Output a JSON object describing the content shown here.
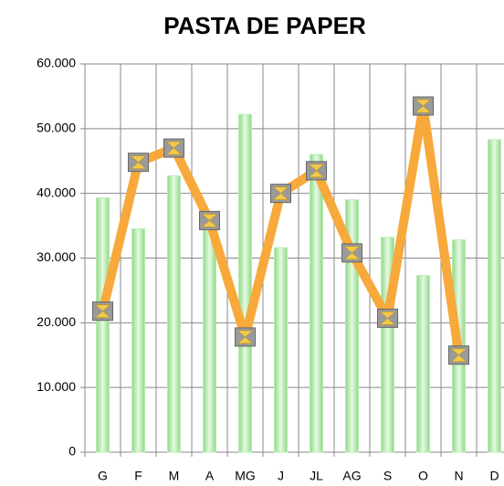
{
  "chart_data": {
    "type": "bar_line",
    "title": "PASTA DE PAPER",
    "categories": [
      "G",
      "F",
      "M",
      "A",
      "MG",
      "J",
      "JL",
      "AG",
      "S",
      "O",
      "N",
      "D"
    ],
    "series": [
      {
        "type": "bar",
        "color": "#b8ecb0",
        "values": [
          39300,
          34500,
          42700,
          35000,
          52200,
          31600,
          46000,
          39000,
          33200,
          27300,
          32800,
          48300
        ]
      },
      {
        "type": "line",
        "color": "#f7a93b",
        "values": [
          21800,
          44800,
          47000,
          35800,
          17800,
          40000,
          43500,
          30800,
          20700,
          53500,
          15000,
          null
        ]
      }
    ],
    "ylim": [
      0,
      60000
    ],
    "yticks": [
      0,
      {
        "value": 10000,
        "label": "10.000"
      },
      {
        "value": 20000,
        "label": "20.000"
      },
      {
        "value": 30000,
        "label": "30.000"
      },
      {
        "value": 40000,
        "label": "40.000"
      },
      {
        "value": 50000,
        "label": "50.000"
      },
      {
        "value": 60000,
        "label": "60.000"
      }
    ],
    "grid": true
  }
}
